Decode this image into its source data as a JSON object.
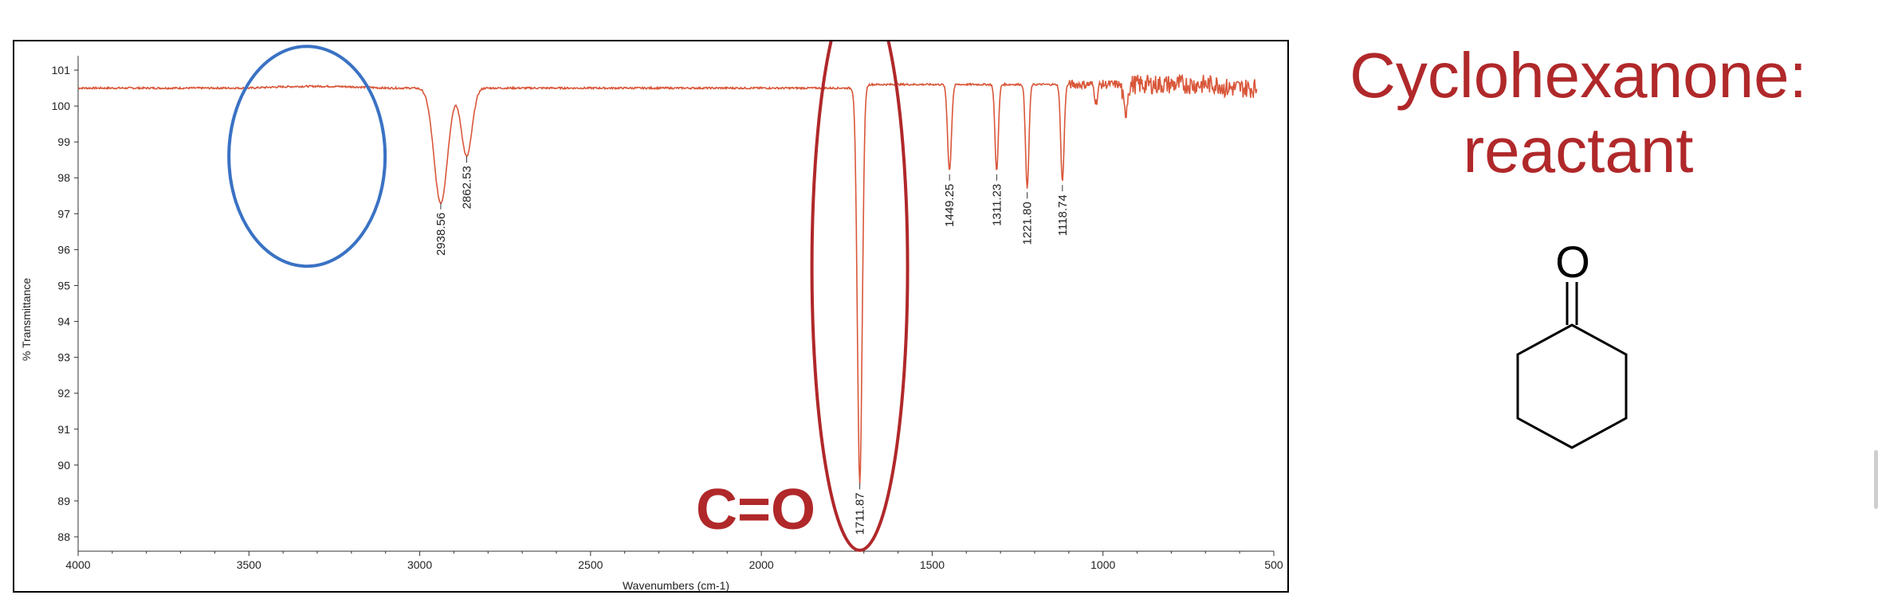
{
  "chart_data": {
    "type": "line",
    "xlabel": "Wavenumbers (cm-1)",
    "ylabel": "% Transmittance",
    "xlim": [
      4000,
      500
    ],
    "ylim": [
      87.6,
      101.4
    ],
    "x_reversed": true,
    "x_ticks": [
      4000,
      3500,
      3000,
      2500,
      2000,
      1500,
      1000,
      500
    ],
    "y_ticks": [
      88,
      89,
      90,
      91,
      92,
      93,
      94,
      95,
      96,
      97,
      98,
      99,
      100,
      101
    ],
    "grid": false,
    "line_color": "#d9573a",
    "baseline": 100.5,
    "series": [
      {
        "peaks": [
          {
            "x": 2938.56,
            "y": 97.3,
            "label": "2938.56",
            "width": 28
          },
          {
            "x": 2862.53,
            "y": 98.6,
            "label": "2862.53",
            "width": 22
          },
          {
            "x": 1711.87,
            "y": 89.5,
            "label": "1711.87",
            "width": 10
          },
          {
            "x": 1449.25,
            "y": 98.1,
            "label": "1449.25",
            "width": 8
          },
          {
            "x": 1311.23,
            "y": 98.1,
            "label": "1311.23",
            "width": 7
          },
          {
            "x": 1221.8,
            "y": 97.6,
            "label": "1221.80",
            "width": 7
          },
          {
            "x": 1118.74,
            "y": 97.8,
            "label": "1118.74",
            "width": 7
          }
        ]
      }
    ],
    "annotations": [
      {
        "text": "C=O",
        "color": "#b0282a"
      }
    ],
    "highlight_regions": [
      {
        "shape": "ellipse",
        "color": "#3a72c4",
        "x_center": 3330,
        "y_center": 98.6
      },
      {
        "shape": "ellipse",
        "color": "#b0282a",
        "x_center": 1712,
        "y_center": 95.5
      }
    ]
  },
  "compound": {
    "title_line1": "Cyclohexanone:",
    "title_line2": "reactant",
    "title_color": "#b0282a",
    "oxygen_label": "O"
  }
}
